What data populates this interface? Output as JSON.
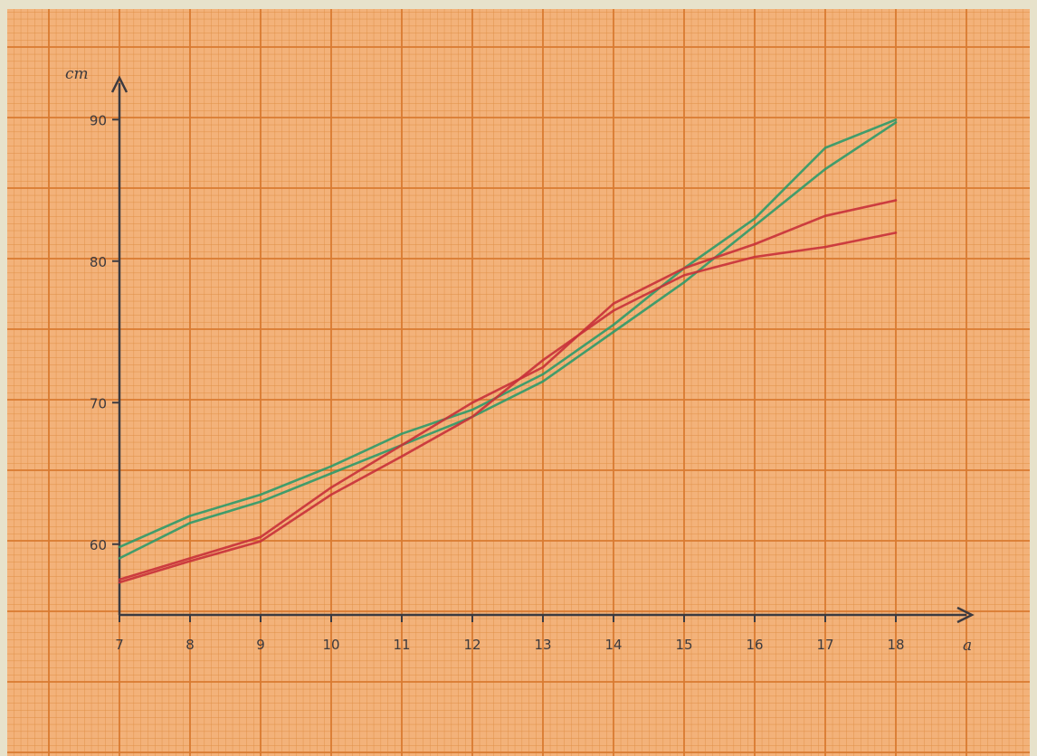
{
  "colors": {
    "paper": "#f3b27a",
    "grid_minor": "#df8f45",
    "grid_major": "#d97a30",
    "axis": "#3b3a40",
    "green_series": "#2e9a6a",
    "red_series": "#c8303a"
  },
  "chart_data": {
    "type": "line",
    "title": "",
    "xlabel": "a",
    "ylabel": "cm",
    "xlim": [
      7,
      18
    ],
    "ylim": [
      55,
      90
    ],
    "x_ticks": [
      "7",
      "8",
      "9",
      "10",
      "11",
      "12",
      "13",
      "14",
      "15",
      "16",
      "17",
      "18"
    ],
    "y_ticks": [
      "60",
      "70",
      "80",
      "90"
    ],
    "grid": true,
    "legend": "none",
    "series": [
      {
        "color": "#2e9a6a",
        "x": [
          7,
          8,
          9,
          10,
          11,
          12,
          13,
          14,
          15,
          16,
          17,
          18
        ],
        "y": [
          59.8,
          62.0,
          63.5,
          65.5,
          67.8,
          69.5,
          72.0,
          75.5,
          79.5,
          83.0,
          88.0,
          90.0
        ]
      },
      {
        "color": "#2e9a6a",
        "x": [
          7,
          8,
          9,
          10,
          11,
          12,
          13,
          14,
          15,
          16,
          17,
          18
        ],
        "y": [
          59.0,
          61.5,
          63.0,
          65.0,
          67.0,
          69.0,
          71.5,
          75.0,
          78.5,
          82.5,
          86.5,
          89.8
        ]
      },
      {
        "color": "#c8303a",
        "x": [
          7,
          8,
          9,
          10,
          11,
          12,
          13,
          14,
          15,
          16,
          17,
          18
        ],
        "y": [
          57.5,
          59.0,
          60.5,
          64.0,
          67.0,
          70.0,
          72.5,
          77.0,
          79.5,
          81.2,
          83.2,
          84.3
        ]
      },
      {
        "color": "#c8303a",
        "x": [
          7,
          8,
          9,
          10,
          11,
          12,
          13,
          14,
          15,
          16,
          17,
          18
        ],
        "y": [
          57.3,
          58.8,
          60.2,
          63.5,
          66.2,
          69.0,
          73.0,
          76.5,
          79.0,
          80.3,
          81.0,
          82.0
        ]
      }
    ]
  }
}
